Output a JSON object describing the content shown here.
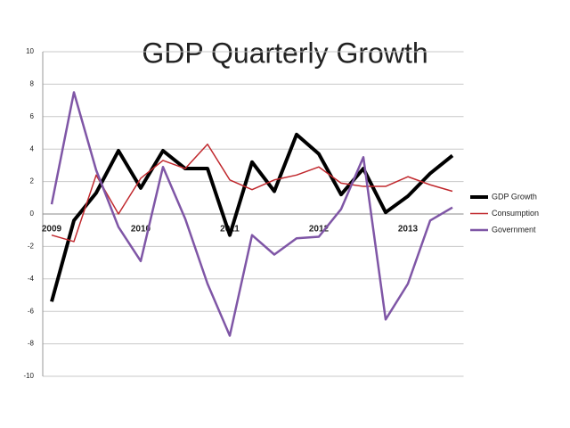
{
  "chart_data": {
    "type": "line",
    "title": "GDP Quarterly Growth",
    "categories": [
      "2009",
      null,
      null,
      null,
      "2010",
      null,
      null,
      null,
      "2011",
      null,
      null,
      null,
      "2012",
      null,
      null,
      null,
      "2013",
      null,
      null
    ],
    "series": [
      {
        "name": "GDP Growth",
        "color": "#000000",
        "values": [
          -5.4,
          -0.4,
          1.3,
          3.9,
          1.6,
          3.9,
          2.8,
          2.8,
          -1.3,
          3.2,
          1.4,
          4.9,
          3.7,
          1.2,
          2.8,
          0.1,
          1.1,
          2.5,
          3.6
        ]
      },
      {
        "name": "Consumption",
        "color": "#c0282d",
        "values": [
          -1.3,
          -1.7,
          2.4,
          0.0,
          2.2,
          3.3,
          2.8,
          4.3,
          2.1,
          1.5,
          2.1,
          2.4,
          2.9,
          1.9,
          1.7,
          1.7,
          2.3,
          1.8,
          1.4
        ]
      },
      {
        "name": "Government",
        "color": "#7f56a6",
        "values": [
          0.6,
          7.5,
          2.7,
          -0.8,
          -2.9,
          2.9,
          -0.3,
          -4.3,
          -7.5,
          -1.3,
          -2.5,
          -1.5,
          -1.4,
          0.3,
          3.5,
          -6.5,
          -4.3,
          -0.4,
          0.4
        ]
      }
    ],
    "ylim": [
      -10,
      10
    ],
    "yticks": [
      -10,
      -8,
      -6,
      -4,
      -2,
      0,
      2,
      4,
      6,
      8,
      10
    ],
    "grid": true,
    "legend": "right"
  }
}
